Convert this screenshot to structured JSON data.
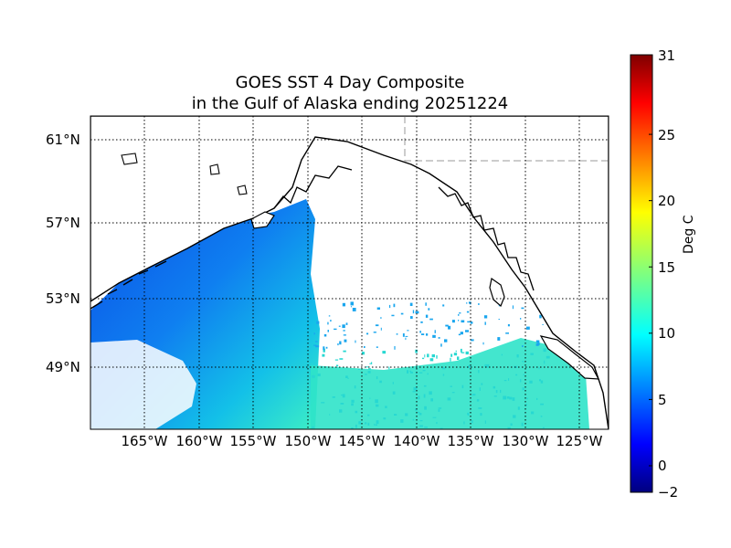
{
  "title": {
    "line1": "GOES SST 4 Day Composite",
    "line2": "in the Gulf of Alaska ending 20251224"
  },
  "map": {
    "lat_ticks": [
      "61°N",
      "57°N",
      "53°N",
      "49°N"
    ],
    "lon_ticks": [
      "165°W",
      "160°W",
      "155°W",
      "150°W",
      "145°W",
      "140°W",
      "135°W",
      "130°W",
      "125°W"
    ],
    "extent": {
      "lon_min": -170,
      "lon_max": -122,
      "lat_min": 46,
      "lat_max": 62
    },
    "colormap": "jet",
    "land_color": "#ffffff",
    "coast_color": "#000000"
  },
  "colorbar": {
    "label": "Deg C",
    "min": -2,
    "max": 31,
    "ticks": [
      "31",
      "25",
      "20",
      "15",
      "10",
      "5",
      "0",
      "−2"
    ],
    "tick_values": [
      31,
      25,
      20,
      15,
      10,
      5,
      0,
      -2
    ]
  }
}
